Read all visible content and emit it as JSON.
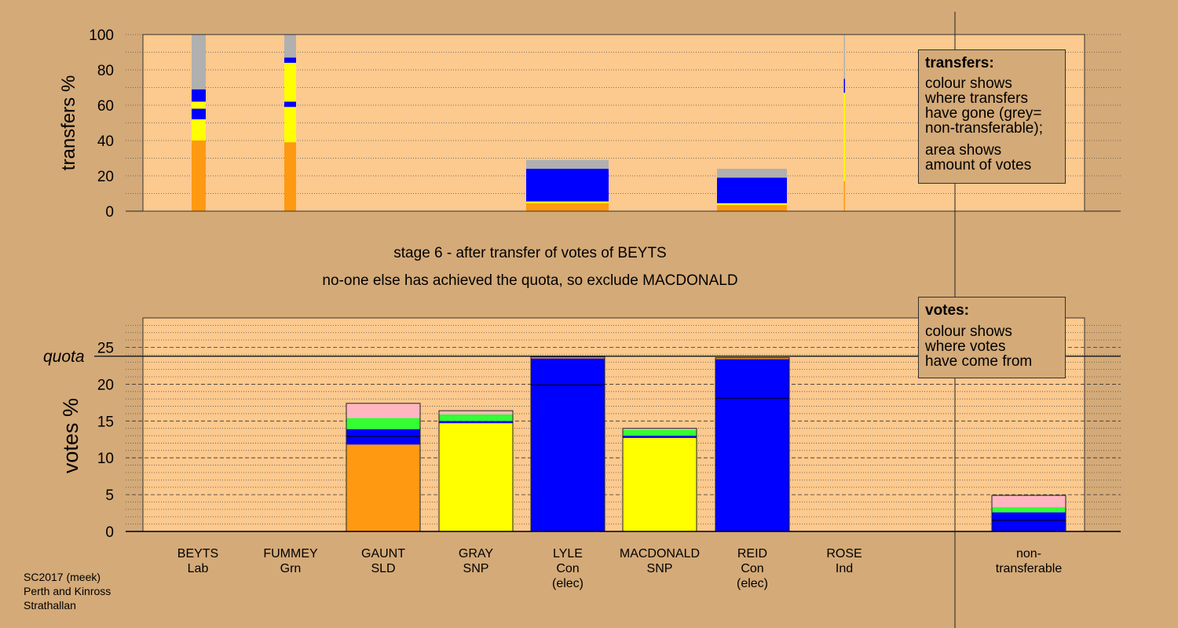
{
  "chart_data": [
    {
      "type": "bar",
      "ylabel": "transfers %",
      "ylim": [
        0,
        100
      ],
      "yticks": [
        0,
        20,
        40,
        60,
        80,
        100
      ],
      "grid": "dotted",
      "columns": [
        {
          "candidate": "BEYTS",
          "segments": [
            {
              "color": "#ff9912",
              "from": 0,
              "to": 40
            },
            {
              "color": "#ffff00",
              "from": 40,
              "to": 52
            },
            {
              "color": "#0000ff",
              "from": 52,
              "to": 58
            },
            {
              "color": "#ffff00",
              "from": 58,
              "to": 62
            },
            {
              "color": "#0000ff",
              "from": 62,
              "to": 69
            },
            {
              "color": "#b0b0b0",
              "from": 69,
              "to": 100
            }
          ]
        },
        {
          "candidate": "FUMMEY",
          "segments": [
            {
              "color": "#ff9912",
              "from": 0,
              "to": 39
            },
            {
              "color": "#ffff00",
              "from": 39,
              "to": 59
            },
            {
              "color": "#0000ff",
              "from": 59,
              "to": 62
            },
            {
              "color": "#ffff00",
              "from": 62,
              "to": 84
            },
            {
              "color": "#0000ff",
              "from": 84,
              "to": 87
            },
            {
              "color": "#b0b0b0",
              "from": 87,
              "to": 100
            }
          ]
        },
        {
          "candidate": "LYLE",
          "segments": [
            {
              "color": "#ff9912",
              "from": 0,
              "to": 4.5
            },
            {
              "color": "#ffff00",
              "from": 4.5,
              "to": 5.5
            },
            {
              "color": "#0000ff",
              "from": 5.5,
              "to": 24
            },
            {
              "color": "#b0b0b0",
              "from": 24,
              "to": 29
            }
          ]
        },
        {
          "candidate": "REID",
          "segments": [
            {
              "color": "#ff9912",
              "from": 0,
              "to": 3.5
            },
            {
              "color": "#ffff00",
              "from": 3.5,
              "to": 4.5
            },
            {
              "color": "#0000ff",
              "from": 4.5,
              "to": 19
            },
            {
              "color": "#b0b0b0",
              "from": 19,
              "to": 24
            }
          ]
        },
        {
          "candidate": "MACDONALD",
          "segments": [
            {
              "color": "#ff9912",
              "from": 0,
              "to": 17
            },
            {
              "color": "#ffff00",
              "from": 17,
              "to": 67
            },
            {
              "color": "#0000ff",
              "from": 67,
              "to": 75
            },
            {
              "color": "#b0b0b0",
              "from": 75,
              "to": 100
            }
          ]
        }
      ]
    },
    {
      "type": "bar",
      "ylabel": "votes %",
      "ylim": [
        0,
        29
      ],
      "yticks": [
        0,
        5,
        10,
        15,
        20,
        25
      ],
      "quota": 23.8,
      "quota_label": "quota",
      "grid": "dotted",
      "categories": [
        {
          "name": "BEYTS",
          "party": "Lab",
          "extra": ""
        },
        {
          "name": "FUMMEY",
          "party": "Grn",
          "extra": ""
        },
        {
          "name": "GAUNT",
          "party": "SLD",
          "extra": ""
        },
        {
          "name": "GRAY",
          "party": "SNP",
          "extra": ""
        },
        {
          "name": "LYLE",
          "party": "Con",
          "extra": "(elec)"
        },
        {
          "name": "MACDONALD",
          "party": "SNP",
          "extra": ""
        },
        {
          "name": "REID",
          "party": "Con",
          "extra": "(elec)"
        },
        {
          "name": "ROSE",
          "party": "Ind",
          "extra": ""
        },
        {
          "name": "non-",
          "party": "transferable",
          "extra": ""
        }
      ],
      "stacks": [
        [],
        [],
        [
          {
            "color": "#ff9912",
            "from": 0,
            "to": 11.8
          },
          {
            "color": "#0000ff",
            "from": 11.8,
            "to": 13.9
          },
          {
            "color": "#33ff33",
            "from": 13.9,
            "to": 15.4
          },
          {
            "color": "#ffb6c1",
            "from": 15.4,
            "to": 17.4
          }
        ],
        [
          {
            "color": "#ffff00",
            "from": 0,
            "to": 14.7
          },
          {
            "color": "#0000ff",
            "from": 14.7,
            "to": 15.0
          },
          {
            "color": "#33ff33",
            "from": 15.0,
            "to": 15.9
          },
          {
            "color": "#ffb6c1",
            "from": 15.9,
            "to": 16.4
          }
        ],
        [
          {
            "color": "#0000ff",
            "from": 0,
            "to": 23.5
          },
          {
            "color": "#ff9912",
            "from": 23.5,
            "to": 23.7
          }
        ],
        [
          {
            "color": "#ffff00",
            "from": 0,
            "to": 12.7
          },
          {
            "color": "#0000ff",
            "from": 12.7,
            "to": 13.0
          },
          {
            "color": "#33ff33",
            "from": 13.0,
            "to": 13.8
          },
          {
            "color": "#ffb6c1",
            "from": 13.8,
            "to": 14.0
          }
        ],
        [
          {
            "color": "#0000ff",
            "from": 0,
            "to": 23.4
          },
          {
            "color": "#ff9912",
            "from": 23.4,
            "to": 23.6
          }
        ],
        [],
        [
          {
            "color": "#0000ff",
            "from": 0,
            "to": 2.6
          },
          {
            "color": "#33ff33",
            "from": 2.6,
            "to": 3.3
          },
          {
            "color": "#ffb6c1",
            "from": 3.3,
            "to": 4.9
          }
        ]
      ],
      "first_preference_marks": [
        null,
        null,
        12.9,
        null,
        19.9,
        null,
        18.1,
        null,
        1.5
      ]
    }
  ],
  "colors": {
    "background": "#d4aa78",
    "plot_background": "#fcc98e"
  },
  "legend_transfers": {
    "title": "transfers:",
    "lines1": [
      "colour shows",
      "where transfers",
      "have gone (grey=",
      "non-transferable);"
    ],
    "lines2": [
      "area shows",
      "amount of votes"
    ]
  },
  "legend_votes": {
    "title": "votes:",
    "lines": [
      "colour shows",
      "where votes",
      "have come from"
    ]
  },
  "stage": {
    "line1": "stage 6 - after transfer of votes of BEYTS",
    "line2": "no-one else has achieved the quota, so exclude MACDONALD"
  },
  "footer": [
    "SC2017 (meek)",
    "Perth and Kinross",
    "Strathallan"
  ]
}
